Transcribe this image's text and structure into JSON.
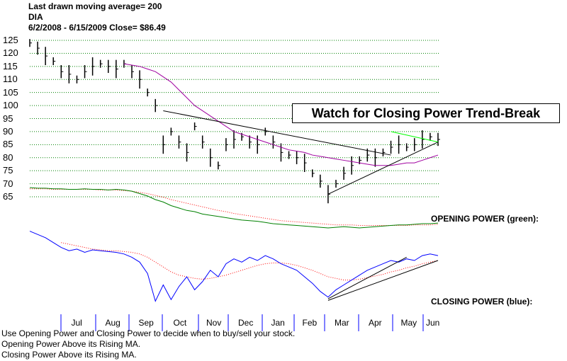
{
  "header": {
    "ma_line": "Last drawn moving average= 200",
    "symbol": "DIA",
    "range_close": "6/2/2008 - 6/15/2009   Close= $86.49"
  },
  "annotation": "Watch for Closing Power Trend-Break",
  "footer": [
    "Use Opening Power and Closing Power to decide when to buy/sell your stock.",
    "Opening Power Above its Rising MA.",
    "Closing Power Above its Rising MA."
  ],
  "chart_data": {
    "type": "line",
    "title": "DIA",
    "ylim": [
      65,
      125
    ],
    "yticks": [
      125,
      120,
      115,
      110,
      105,
      100,
      95,
      90,
      85,
      80,
      75,
      70,
      65
    ],
    "grid": true,
    "months": [
      "Jul",
      "Aug",
      "Sep",
      "Oct",
      "Nov",
      "Dec",
      "Jan",
      "Feb",
      "Mar",
      "Apr",
      "May",
      "Jun"
    ],
    "colors": {
      "price": "#000000",
      "ma200": "#a000a0",
      "opening_power": "#008000",
      "closing_power": "#0000ff",
      "power_ma": "#ff0000",
      "resistance": "#00ff00"
    },
    "price": [
      124,
      122,
      119,
      117,
      113,
      112,
      110,
      113,
      115,
      116,
      115,
      114,
      116,
      113,
      110,
      105,
      100,
      85,
      90,
      86,
      82,
      92,
      86,
      80,
      77,
      85,
      87,
      88,
      86,
      85,
      90,
      86,
      82,
      81,
      80,
      78,
      74,
      71,
      66,
      70,
      74,
      77,
      79,
      81,
      80,
      82,
      84,
      85,
      84,
      85,
      87,
      88,
      87
    ],
    "ma200": [
      null,
      null,
      null,
      null,
      null,
      null,
      null,
      null,
      null,
      null,
      null,
      null,
      116,
      115.5,
      115,
      114,
      113,
      111,
      109,
      106,
      103,
      100,
      98,
      96,
      94,
      92,
      90,
      89,
      88,
      87,
      86,
      85,
      84,
      83,
      82.5,
      82,
      81,
      80.5,
      80,
      79.5,
      79,
      78.5,
      78,
      77.5,
      77,
      77,
      77,
      77.5,
      78,
      78,
      79,
      80,
      81
    ],
    "trendlines": [
      {
        "from": [
          17,
          98
        ],
        "to": [
          46,
          81
        ]
      },
      {
        "from": [
          38,
          66
        ],
        "to": [
          52,
          86
        ]
      }
    ],
    "resistance_line": {
      "from": [
        46,
        90
      ],
      "to": [
        52,
        86
      ]
    },
    "opening_power": {
      "label": "OPENING POWER (green):",
      "values": [
        100,
        99,
        99,
        98,
        98,
        97,
        97,
        98,
        97,
        97,
        96,
        97,
        96,
        94,
        90,
        86,
        80,
        76,
        70,
        66,
        62,
        60,
        56,
        54,
        52,
        50,
        48,
        46,
        45,
        44,
        42,
        40,
        39,
        38,
        37,
        36,
        35,
        34,
        33,
        34,
        35,
        34,
        33,
        34,
        35,
        36,
        37,
        38,
        38,
        39,
        40,
        40,
        41
      ]
    },
    "opening_power_ma": [
      98,
      98,
      98,
      97,
      97,
      97,
      97,
      97,
      97,
      96,
      96,
      96,
      95,
      94,
      92,
      90,
      87,
      84,
      80,
      77,
      74,
      71,
      68,
      65,
      62,
      60,
      57,
      55,
      53,
      51,
      49,
      47,
      45,
      44,
      43,
      42,
      41,
      40,
      39,
      38,
      38,
      38,
      37,
      37,
      37,
      37,
      37,
      37,
      37,
      38,
      38,
      38,
      39
    ],
    "closing_power": {
      "label": "CLOSING POWER (blue):",
      "values": [
        96,
        92,
        88,
        82,
        76,
        72,
        74,
        70,
        73,
        72,
        71,
        70,
        68,
        64,
        58,
        44,
        10,
        30,
        12,
        28,
        40,
        24,
        34,
        48,
        40,
        56,
        62,
        58,
        64,
        60,
        66,
        62,
        56,
        52,
        48,
        40,
        32,
        22,
        15,
        24,
        30,
        36,
        42,
        48,
        52,
        56,
        60,
        58,
        62,
        60,
        66,
        68,
        66
      ]
    },
    "closing_power_ma": [
      null,
      null,
      null,
      null,
      82,
      80,
      78,
      76,
      74,
      73,
      72,
      72,
      71,
      70,
      68,
      64,
      58,
      52,
      46,
      42,
      40,
      38,
      37,
      38,
      40,
      42,
      45,
      48,
      51,
      54,
      56,
      57,
      57,
      56,
      54,
      51,
      48,
      44,
      40,
      38,
      36,
      36,
      37,
      39,
      41,
      43,
      46,
      48,
      51,
      53,
      56,
      58,
      60
    ]
  }
}
